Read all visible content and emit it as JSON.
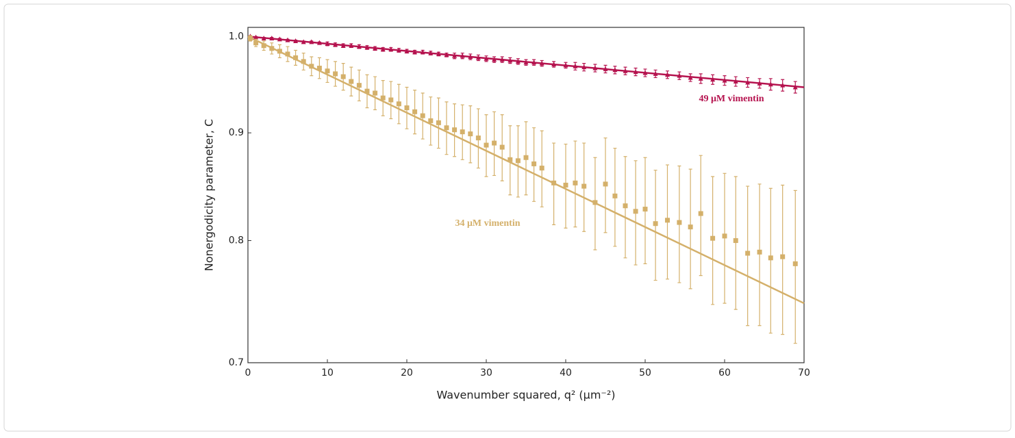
{
  "chart_data": {
    "type": "scatter",
    "xlabel": "Wavenumber squared, q² (μm⁻²)",
    "ylabel": "Nonergodicity parameter, C",
    "xlim": [
      0,
      70
    ],
    "xticks": [
      0,
      10,
      20,
      30,
      40,
      50,
      60,
      70
    ],
    "ylim": [
      0.7,
      1.01
    ],
    "ylog": true,
    "yticks": [
      0.7,
      0.8,
      0.9,
      {
        "value": 1,
        "label": "1.0"
      }
    ],
    "series": [
      {
        "name": "49 μM vimentin",
        "color": "#b5124e",
        "marker": "triangle",
        "x": [
          0.3,
          1,
          2,
          3,
          4,
          5,
          6,
          7,
          8,
          9,
          10,
          11,
          12,
          13,
          14,
          15,
          16,
          17,
          18,
          19,
          20,
          21,
          22,
          23,
          24,
          25,
          26,
          27,
          28,
          29,
          30,
          31,
          32,
          33,
          34,
          35,
          36,
          37,
          38.5,
          40,
          41.2,
          42.3,
          43.7,
          45,
          46.2,
          47.5,
          48.8,
          50,
          51.3,
          52.8,
          54.3,
          55.7,
          57,
          58.5,
          60,
          61.4,
          62.9,
          64.4,
          65.8,
          67.3,
          68.9
        ],
        "values": [
          1.0,
          0.999,
          0.998,
          0.998,
          0.997,
          0.996,
          0.995,
          0.994,
          0.994,
          0.993,
          0.992,
          0.991,
          0.99,
          0.99,
          0.989,
          0.988,
          0.987,
          0.986,
          0.986,
          0.985,
          0.984,
          0.983,
          0.983,
          0.982,
          0.981,
          0.98,
          0.979,
          0.979,
          0.978,
          0.977,
          0.976,
          0.975,
          0.975,
          0.974,
          0.973,
          0.972,
          0.972,
          0.971,
          0.97,
          0.969,
          0.968,
          0.967,
          0.966,
          0.965,
          0.964,
          0.963,
          0.962,
          0.961,
          0.96,
          0.959,
          0.958,
          0.956,
          0.955,
          0.954,
          0.953,
          0.952,
          0.951,
          0.95,
          0.949,
          0.948,
          0.946
        ],
        "errors": [
          0.001,
          0.001,
          0.001,
          0.001,
          0.001,
          0.001,
          0.001,
          0.001,
          0.001,
          0.001,
          0.002,
          0.002,
          0.002,
          0.002,
          0.002,
          0.002,
          0.002,
          0.002,
          0.002,
          0.002,
          0.002,
          0.002,
          0.002,
          0.002,
          0.002,
          0.002,
          0.003,
          0.003,
          0.003,
          0.003,
          0.003,
          0.003,
          0.003,
          0.003,
          0.003,
          0.003,
          0.003,
          0.003,
          0.003,
          0.003,
          0.004,
          0.004,
          0.004,
          0.004,
          0.004,
          0.004,
          0.004,
          0.004,
          0.004,
          0.004,
          0.004,
          0.004,
          0.005,
          0.005,
          0.005,
          0.005,
          0.005,
          0.005,
          0.006,
          0.006,
          0.006
        ]
      },
      {
        "name": "34 μM vimentin",
        "color": "#d4b06a",
        "marker": "square",
        "x": [
          0.3,
          1,
          2,
          3,
          4,
          5,
          6,
          7,
          8,
          9,
          10,
          11,
          12,
          13,
          14,
          15,
          16,
          17,
          18,
          19,
          20,
          21,
          22,
          23,
          24,
          25,
          26,
          27,
          28,
          29,
          30,
          31,
          32,
          33,
          34,
          35,
          36,
          37,
          38.5,
          40,
          41.2,
          42.3,
          43.7,
          45,
          46.2,
          47.5,
          48.8,
          50,
          51.3,
          52.8,
          54.3,
          55.7,
          57,
          58.5,
          60,
          61.4,
          62.9,
          64.4,
          65.8,
          67.3,
          68.9
        ],
        "values": [
          0.998,
          0.993,
          0.99,
          0.987,
          0.984,
          0.981,
          0.977,
          0.973,
          0.968,
          0.966,
          0.963,
          0.96,
          0.957,
          0.952,
          0.948,
          0.942,
          0.94,
          0.935,
          0.933,
          0.929,
          0.925,
          0.921,
          0.917,
          0.912,
          0.91,
          0.905,
          0.903,
          0.901,
          0.899,
          0.895,
          0.888,
          0.89,
          0.886,
          0.874,
          0.873,
          0.876,
          0.87,
          0.866,
          0.852,
          0.85,
          0.852,
          0.849,
          0.834,
          0.851,
          0.84,
          0.831,
          0.826,
          0.828,
          0.815,
          0.818,
          0.816,
          0.812,
          0.824,
          0.802,
          0.804,
          0.8,
          0.789,
          0.79,
          0.785,
          0.786,
          0.78
        ],
        "errors": [
          0.003,
          0.004,
          0.005,
          0.006,
          0.007,
          0.008,
          0.008,
          0.009,
          0.01,
          0.011,
          0.012,
          0.013,
          0.014,
          0.015,
          0.016,
          0.017,
          0.017,
          0.018,
          0.019,
          0.02,
          0.021,
          0.022,
          0.023,
          0.024,
          0.025,
          0.026,
          0.026,
          0.027,
          0.028,
          0.029,
          0.03,
          0.031,
          0.032,
          0.033,
          0.034,
          0.035,
          0.035,
          0.036,
          0.038,
          0.039,
          0.04,
          0.041,
          0.042,
          0.044,
          0.045,
          0.046,
          0.047,
          0.048,
          0.049,
          0.051,
          0.052,
          0.053,
          0.054,
          0.056,
          0.057,
          0.058,
          0.06,
          0.061,
          0.062,
          0.064,
          0.065
        ]
      }
    ],
    "fits": [
      {
        "color": "#b5124e",
        "x": [
          0,
          70
        ],
        "values": [
          1.0,
          0.946
        ]
      },
      {
        "color": "#d4b06a",
        "x": [
          0,
          70
        ],
        "values": [
          1.0,
          0.747
        ]
      }
    ]
  }
}
